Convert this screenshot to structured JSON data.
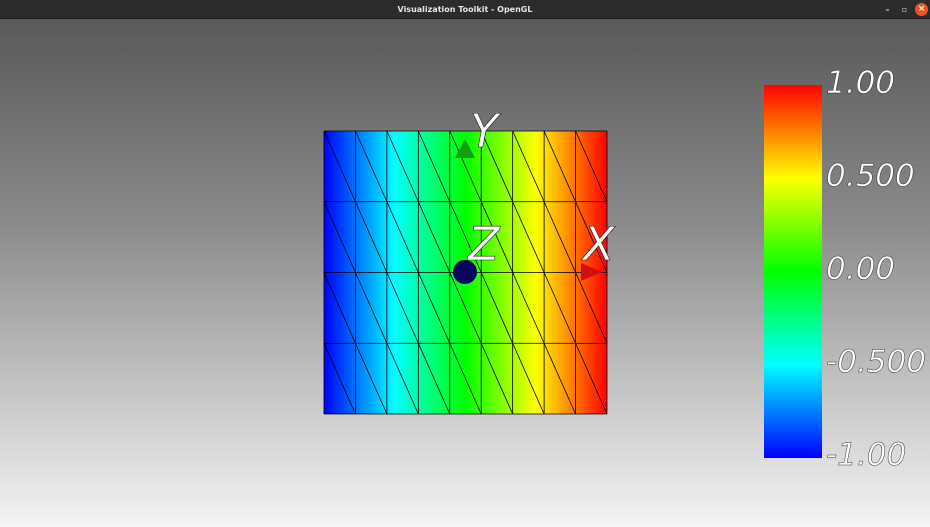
{
  "window": {
    "title": "Visualization Toolkit - OpenGL",
    "minimize_glyph": "–",
    "maximize_glyph": "▫",
    "close_glyph": "×"
  },
  "axes": {
    "x_label": "X",
    "y_label": "Y",
    "z_label": "Z",
    "x_color": "#d01010",
    "y_color": "#10a010",
    "z_color": "#06065e"
  },
  "scalar_bar": {
    "labels": [
      "1.00",
      "0.500",
      "0.00",
      "-0.500",
      "-1.00"
    ],
    "range": [
      -1.0,
      1.0
    ],
    "colors": [
      "#0000ff",
      "#00ffff",
      "#00ff00",
      "#ffff00",
      "#ff0000"
    ]
  },
  "mesh": {
    "colormap": [
      "#0000ff",
      "#00ffff",
      "#00ff00",
      "#ffff00",
      "#ff0000"
    ],
    "edge_color": "#000000"
  }
}
